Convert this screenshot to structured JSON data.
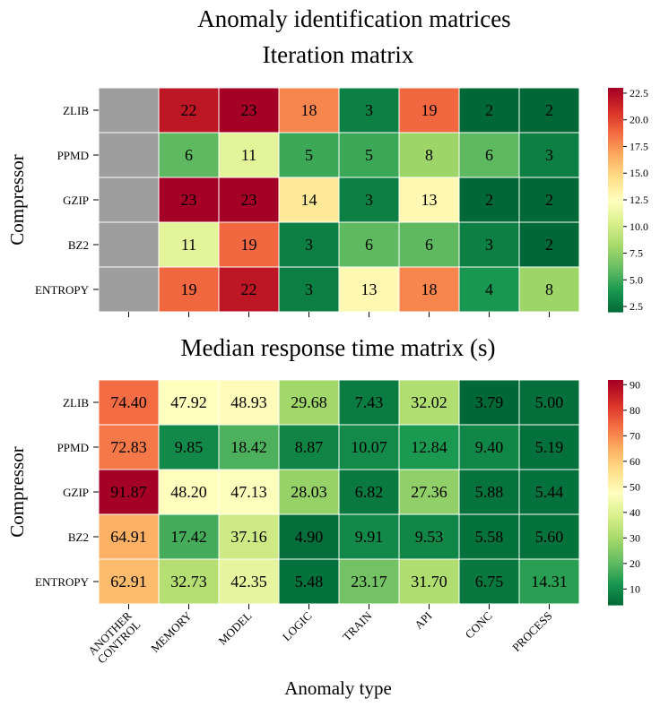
{
  "figure": {
    "suptitle": "Anomaly identification matrices",
    "xlabel": "Anomaly type"
  },
  "chart_data": [
    {
      "type": "heatmap",
      "title": "Iteration matrix",
      "ylabel": "Compressor",
      "rows": [
        "ZLIB",
        "PPMD",
        "GZIP",
        "BZ2",
        "ENTROPY"
      ],
      "columns": [
        "ANOTHER CONTROL",
        "MEMORY",
        "MODEL",
        "LOGIC",
        "TRAIN",
        "API",
        "CONC",
        "PROCESS"
      ],
      "values": [
        [
          null,
          22,
          23,
          18,
          3,
          19,
          2,
          2
        ],
        [
          null,
          6,
          11,
          5,
          5,
          8,
          6,
          3
        ],
        [
          null,
          23,
          23,
          14,
          3,
          13,
          2,
          2
        ],
        [
          null,
          11,
          19,
          3,
          6,
          6,
          3,
          2
        ],
        [
          null,
          19,
          22,
          3,
          13,
          18,
          4,
          8
        ]
      ],
      "cell_labels": [
        [
          "",
          "22",
          "23",
          "18",
          "3",
          "19",
          "2",
          "2"
        ],
        [
          "",
          "6",
          "11",
          "5",
          "5",
          "8",
          "6",
          "3"
        ],
        [
          "",
          "23",
          "23",
          "14",
          "3",
          "13",
          "2",
          "2"
        ],
        [
          "",
          "11",
          "19",
          "3",
          "6",
          "6",
          "3",
          "2"
        ],
        [
          "",
          "19",
          "22",
          "3",
          "13",
          "18",
          "4",
          "8"
        ]
      ],
      "colormap": "RdYlGn_r",
      "missing_color": "#9e9e9e",
      "vmin": 2,
      "vmax": 23,
      "colorbar_ticks": [
        2.5,
        5.0,
        7.5,
        10.0,
        12.5,
        15.0,
        17.5,
        20.0,
        22.5
      ],
      "colorbar_tick_labels": [
        "2.5",
        "5.0",
        "7.5",
        "10.0",
        "12.5",
        "15.0",
        "17.5",
        "20.0",
        "22.5"
      ],
      "show_column_labels": false
    },
    {
      "type": "heatmap",
      "title": "Median response time matrix (s)",
      "ylabel": "Compressor",
      "rows": [
        "ZLIB",
        "PPMD",
        "GZIP",
        "BZ2",
        "ENTROPY"
      ],
      "columns": [
        "ANOTHER CONTROL",
        "MEMORY",
        "MODEL",
        "LOGIC",
        "TRAIN",
        "API",
        "CONC",
        "PROCESS"
      ],
      "values": [
        [
          74.4,
          47.92,
          48.93,
          29.68,
          7.43,
          32.02,
          3.79,
          5.0
        ],
        [
          72.83,
          9.85,
          18.42,
          8.87,
          10.07,
          12.84,
          9.4,
          5.19
        ],
        [
          91.87,
          48.2,
          47.13,
          28.03,
          6.82,
          27.36,
          5.88,
          5.44
        ],
        [
          64.91,
          17.42,
          37.16,
          4.9,
          9.91,
          9.53,
          5.58,
          5.6
        ],
        [
          62.91,
          32.73,
          42.35,
          5.48,
          23.17,
          31.7,
          6.75,
          14.31
        ]
      ],
      "cell_labels": [
        [
          "74.40",
          "47.92",
          "48.93",
          "29.68",
          "7.43",
          "32.02",
          "3.79",
          "5.00"
        ],
        [
          "72.83",
          "9.85",
          "18.42",
          "8.87",
          "10.07",
          "12.84",
          "9.40",
          "5.19"
        ],
        [
          "91.87",
          "48.20",
          "47.13",
          "28.03",
          "6.82",
          "27.36",
          "5.88",
          "5.44"
        ],
        [
          "64.91",
          "17.42",
          "37.16",
          "4.90",
          "9.91",
          "9.53",
          "5.58",
          "5.60"
        ],
        [
          "62.91",
          "32.73",
          "42.35",
          "5.48",
          "23.17",
          "31.70",
          "6.75",
          "14.31"
        ]
      ],
      "colormap": "RdYlGn_r",
      "vmin": 3.79,
      "vmax": 91.87,
      "colorbar_ticks": [
        10,
        20,
        30,
        40,
        50,
        60,
        70,
        80,
        90
      ],
      "colorbar_tick_labels": [
        "10",
        "20",
        "30",
        "40",
        "50",
        "60",
        "70",
        "80",
        "90"
      ],
      "show_column_labels": true,
      "column_tick_labels": [
        [
          "ANOTHER",
          "CONTROL"
        ],
        [
          "MEMORY"
        ],
        [
          "MODEL"
        ],
        [
          "LOGIC"
        ],
        [
          "TRAIN"
        ],
        [
          "API"
        ],
        [
          "CONC"
        ],
        [
          "PROCESS"
        ]
      ]
    }
  ]
}
